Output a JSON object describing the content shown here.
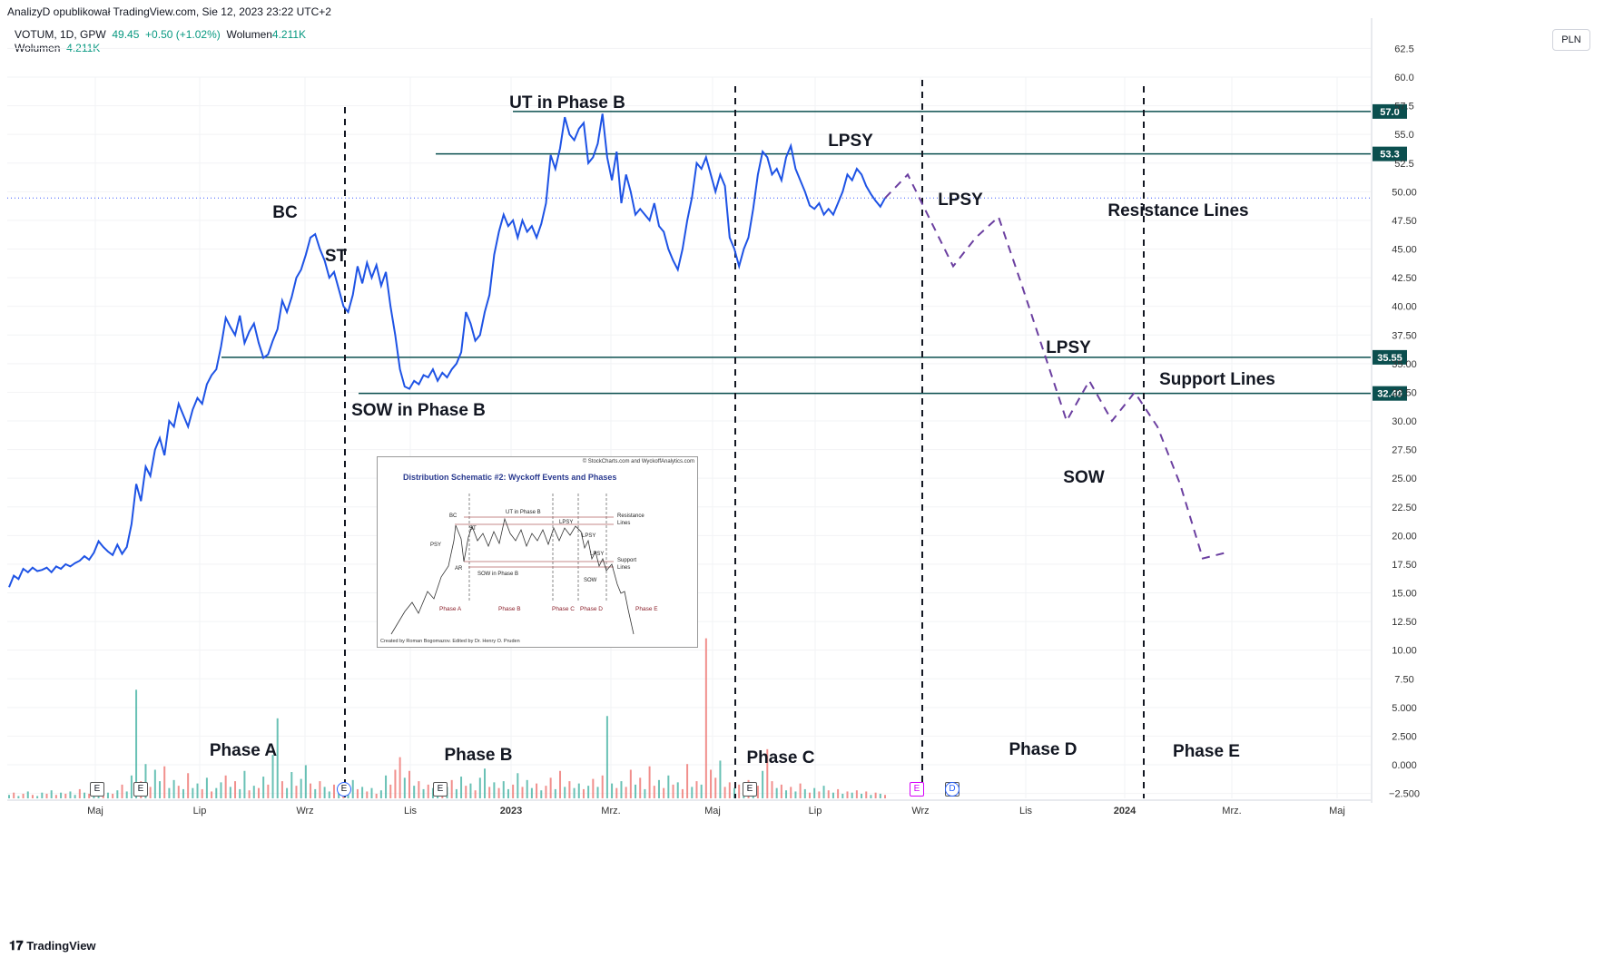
{
  "header": {
    "publisher_line": "AnalizyD opublikował TradingView.com, Sie 12, 2023 23:22 UTC+2",
    "symbol_line": "VOTUM, 1D, GPW",
    "last_price": "49.45",
    "change": "+0.50 (+1.02%)",
    "volume_label": "Wolumen",
    "volume_value": "4.211K",
    "volume_line_label": "Wolumen",
    "volume_line_value": "4.211K"
  },
  "currency_button": "PLN",
  "footer": {
    "logo_text": "TradingView"
  },
  "colors": {
    "price_line": "#1e53e5",
    "level_line": "#0b4f4f",
    "projection": "#6b3fa0",
    "vol_up": "#4fb6a8",
    "vol_down": "#ef7b78",
    "last_price_dotted": "#3d5afe"
  },
  "chart_data": {
    "type": "line",
    "title": "",
    "ylabel": "",
    "ylim": [
      -2.5,
      62.5
    ],
    "y_ticks": [
      "62.5",
      "60.0",
      "57.5",
      "55.0",
      "52.5",
      "50.00",
      "47.50",
      "45.00",
      "42.50",
      "40.00",
      "37.50",
      "35.00",
      "32.50",
      "30.00",
      "27.50",
      "25.00",
      "22.50",
      "20.00",
      "17.50",
      "15.00",
      "12.50",
      "10.00",
      "7.50",
      "5.000",
      "2.500",
      "0.000",
      "−2.500"
    ],
    "x_ticks": [
      "Maj",
      "Lip",
      "Wrz",
      "Lis",
      "2023",
      "Mrz.",
      "Maj",
      "Lip",
      "Wrz",
      "Lis",
      "2024",
      "Mrz.",
      "Maj"
    ],
    "x_tick_bold": [
      false,
      false,
      false,
      false,
      true,
      false,
      false,
      false,
      false,
      false,
      true,
      false,
      false
    ],
    "series": [
      {
        "values": [
          15.5,
          16.5,
          16.2,
          17.1,
          16.8,
          17.2,
          16.9,
          17.0,
          17.2,
          16.8,
          17.3,
          17.1,
          17.5,
          17.3,
          17.6,
          17.8,
          18.2,
          17.9,
          18.5,
          19.5,
          19.0,
          18.6,
          18.3,
          19.2,
          18.4,
          19.0,
          21.0,
          24.5,
          23.0,
          26.0,
          25.2,
          27.5,
          28.5,
          27.0,
          30.0,
          29.5,
          31.5,
          30.5,
          29.5,
          31.0,
          32.0,
          31.5,
          33.2,
          34.0,
          34.5,
          36.5,
          39.0,
          38.2,
          37.5,
          39.2,
          36.8,
          37.8,
          38.5,
          36.8,
          35.5,
          35.8,
          37.0,
          38.0,
          40.5,
          39.5,
          40.8,
          42.5,
          43.2,
          44.5,
          46.0,
          46.3,
          45.0,
          44.0,
          42.5,
          43.0,
          41.5,
          40.0,
          39.5,
          41.0,
          43.5,
          42.0,
          43.8,
          42.5,
          43.6,
          41.8,
          43.0,
          40.0,
          37.5,
          34.5,
          33.0,
          32.8,
          33.5,
          33.2,
          34.0,
          33.8,
          34.5,
          33.5,
          34.2,
          33.8,
          34.5,
          35.0,
          36.0,
          39.5,
          38.5,
          37.0,
          37.5,
          39.5,
          41.0,
          44.5,
          46.5,
          48.0,
          47.0,
          47.5,
          46.0,
          47.5,
          46.5,
          47.0,
          46.0,
          47.2,
          49.0,
          53.2,
          52.0,
          53.8,
          56.5,
          55.0,
          54.5,
          55.5,
          56.0,
          52.5,
          53.0,
          54.2,
          56.8,
          53.0,
          51.0,
          53.5,
          49.0,
          51.5,
          50.0,
          48.0,
          48.5,
          48.0,
          47.5,
          49.0,
          47.0,
          46.5,
          45.0,
          44.0,
          43.2,
          45.0,
          47.5,
          49.5,
          52.5,
          52.0,
          53.0,
          51.5,
          50.0,
          51.5,
          50.5,
          46.0,
          45.0,
          43.5,
          45.0,
          46.0,
          48.5,
          51.5,
          53.5,
          53.0,
          51.5,
          52.0,
          51.0,
          53.0,
          54.0,
          52.0,
          51.0,
          50.0,
          48.8,
          48.5,
          49.0,
          48.0,
          48.5,
          48.0,
          49.0,
          50.0,
          51.5,
          51.0,
          52.0,
          51.5,
          50.5,
          49.8,
          49.2,
          48.7,
          49.45
        ]
      },
      {
        "values": [
          49.45,
          51.5,
          47.5,
          43.5,
          46.0,
          47.8,
          42.0,
          36.0,
          30.0,
          33.5,
          30.0,
          32.5,
          29.5,
          24.5,
          18.0,
          18.5
        ]
      }
    ],
    "horizontal_levels": [
      {
        "value": 57.0,
        "label": "57.0"
      },
      {
        "value": 53.3,
        "label": "53.3"
      },
      {
        "value": 35.55,
        "label": "35.55"
      },
      {
        "value": 32.4,
        "label": "32.40"
      }
    ],
    "last_price_line": 49.45,
    "annotations": [
      "BC",
      "ST",
      "UT in Phase B",
      "SOW in Phase B",
      "LPSY",
      "LPSY",
      "Resistance Lines",
      "LPSY",
      "Support Lines",
      "SOW",
      "Phase A",
      "Phase B",
      "Phase C",
      "Phase D",
      "Phase E"
    ],
    "volume": {
      "label": "Wolumen",
      "values": [
        0.3,
        0.5,
        0.2,
        0.4,
        0.6,
        0.3,
        0.2,
        0.5,
        0.4,
        0.7,
        0.3,
        0.5,
        0.4,
        0.6,
        0.3,
        0.8,
        0.5,
        0.4,
        0.9,
        0.6,
        0.3,
        0.5,
        0.4,
        0.7,
        1.2,
        0.6,
        2.0,
        9.5,
        1.5,
        3.0,
        1.0,
        2.5,
        1.5,
        2.8,
        0.9,
        1.6,
        1.1,
        0.8,
        2.2,
        0.9,
        1.3,
        0.8,
        1.8,
        0.6,
        0.9,
        1.4,
        2.0,
        1.0,
        1.5,
        0.8,
        2.4,
        0.7,
        1.1,
        0.9,
        1.9,
        1.2,
        3.8,
        7.0,
        1.5,
        0.9,
        2.3,
        1.1,
        1.7,
        2.9,
        1.3,
        0.8,
        1.5,
        1.0,
        0.6,
        1.2,
        0.7,
        0.9,
        0.5,
        1.6,
        0.8,
        1.0,
        0.6,
        0.9,
        0.4,
        0.7,
        2.0,
        1.2,
        2.5,
        3.6,
        1.8,
        2.4,
        1.1,
        1.5,
        0.8,
        1.2,
        0.9,
        1.4,
        0.7,
        1.0,
        1.6,
        0.8,
        1.9,
        1.1,
        1.3,
        0.7,
        1.8,
        2.6,
        1.0,
        1.4,
        0.9,
        1.5,
        0.8,
        1.2,
        2.2,
        1.0,
        1.6,
        0.9,
        1.3,
        0.7,
        1.1,
        1.8,
        0.8,
        2.4,
        1.0,
        1.5,
        0.9,
        1.3,
        0.8,
        1.1,
        1.7,
        1.0,
        2.0,
        7.2,
        1.3,
        0.9,
        1.5,
        1.0,
        2.5,
        1.2,
        1.8,
        0.8,
        2.8,
        1.1,
        1.6,
        0.9,
        2.0,
        1.2,
        1.4,
        0.8,
        3.0,
        1.0,
        1.5,
        1.2,
        14.0,
        2.5,
        1.8,
        3.3,
        1.0,
        1.4,
        0.9,
        1.2,
        0.7,
        1.6,
        0.8,
        1.1,
        2.4,
        4.3,
        1.5,
        0.9,
        1.2,
        0.7,
        1.0,
        0.6,
        1.3,
        0.8,
        0.5,
        0.9,
        0.6,
        1.1,
        0.7,
        0.5,
        0.8,
        0.4,
        0.6,
        0.5,
        0.7,
        0.4,
        0.6,
        0.3,
        0.5,
        0.4,
        0.3
      ],
      "up": [
        1,
        0,
        1,
        0,
        1,
        0,
        1,
        1,
        0,
        1,
        0,
        1,
        0,
        1,
        1,
        0,
        1,
        0,
        1,
        1,
        0,
        1,
        0,
        1,
        0,
        1,
        1,
        1,
        0,
        1,
        0,
        1,
        1,
        0,
        1,
        1,
        0,
        1,
        0,
        1,
        1,
        0,
        1,
        0,
        1,
        1,
        0,
        1,
        0,
        1,
        1,
        0,
        1,
        0,
        1,
        0,
        1,
        1,
        0,
        1,
        1,
        0,
        1,
        1,
        0,
        1,
        0,
        1,
        1,
        0,
        1,
        0,
        1,
        1,
        0,
        1,
        0,
        1,
        0,
        1,
        1,
        0,
        0,
        0,
        1,
        0,
        1,
        0,
        1,
        0,
        1,
        1,
        0,
        1,
        0,
        1,
        1,
        0,
        1,
        0,
        1,
        1,
        0,
        1,
        0,
        1,
        1,
        0,
        1,
        0,
        1,
        1,
        0,
        1,
        0,
        0,
        1,
        0,
        1,
        0,
        1,
        1,
        0,
        1,
        0,
        1,
        0,
        1,
        1,
        0,
        1,
        0,
        0,
        1,
        0,
        1,
        0,
        0,
        1,
        0,
        1,
        0,
        1,
        0,
        0,
        1,
        0,
        1,
        0,
        0,
        0,
        1,
        0,
        0,
        1,
        0,
        1,
        0,
        1,
        0,
        1,
        0,
        0,
        1,
        0,
        1,
        0,
        1,
        0,
        1,
        0,
        1,
        0,
        1,
        0,
        1,
        0,
        1,
        0,
        1,
        0,
        1,
        0,
        1,
        0,
        1,
        0,
        1,
        0,
        1,
        0
      ]
    }
  },
  "event_badges": [
    "E",
    "E",
    "E",
    "E",
    "E",
    "E",
    "E",
    "D"
  ],
  "inset": {
    "credit_top": "© StockCharts.com and WyckoffAnalytics.com",
    "title": "Distribution Schematic #2: Wyckoff Events and Phases",
    "labels": [
      "BC",
      "ST",
      "UT in Phase B",
      "LPSY",
      "LPSY",
      "LPSY",
      "PSY",
      "AR",
      "SOW in Phase B",
      "SOW",
      "Resistance",
      "Lines",
      "Support",
      "Lines"
    ],
    "phases": [
      "Phase A",
      "Phase B",
      "Phase C",
      "Phase D",
      "Phase E"
    ],
    "credit_bottom": "Created by Roman Bogomazov. Edited by Dr. Henry O. Pruden"
  }
}
